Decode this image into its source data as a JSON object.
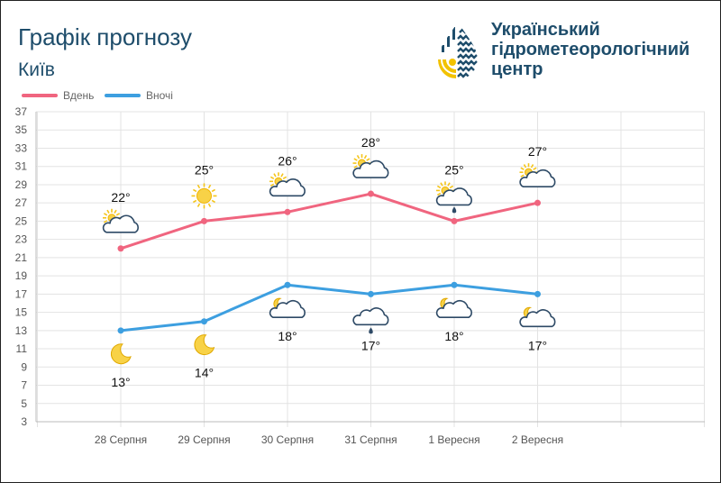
{
  "header": {
    "title": "Графік прогнозу",
    "city": "Київ",
    "org_line1": "Український",
    "org_line2": "гідрометеорологічний",
    "org_line3": "центр"
  },
  "colors": {
    "day": "#f0657f",
    "night": "#3d9fe0",
    "brand": "#1e4d6b",
    "grid": "#e3e3e3"
  },
  "chart_data": {
    "type": "line",
    "categories": [
      "28 Серпня",
      "29 Серпня",
      "30 Серпня",
      "31 Серпня",
      "1 Вересня",
      "2 Вересня"
    ],
    "series": [
      {
        "name": "Вдень",
        "values": [
          22,
          25,
          26,
          28,
          25,
          27
        ],
        "labels": [
          "22°",
          "25°",
          "26°",
          "28°",
          "25°",
          "27°"
        ],
        "icons": [
          "partly-cloudy-icon",
          "sun-icon",
          "partly-cloudy-icon",
          "partly-cloudy-icon",
          "partly-cloudy-rain-icon",
          "partly-cloudy-icon"
        ]
      },
      {
        "name": "Вночі",
        "values": [
          13,
          14,
          18,
          17,
          18,
          17
        ],
        "labels": [
          "13°",
          "14°",
          "18°",
          "17°",
          "18°",
          "17°"
        ],
        "icons": [
          "moon-icon",
          "moon-icon",
          "cloudy-night-icon",
          "cloud-rain-icon",
          "cloudy-night-icon",
          "cloudy-night-icon"
        ]
      }
    ],
    "ylim": [
      3,
      37
    ],
    "yticks": [
      "3",
      "5",
      "7",
      "9",
      "11",
      "13",
      "15",
      "17",
      "19",
      "21",
      "23",
      "25",
      "27",
      "29",
      "31",
      "33",
      "35",
      "37"
    ],
    "grid": true,
    "legend": "top-left"
  }
}
